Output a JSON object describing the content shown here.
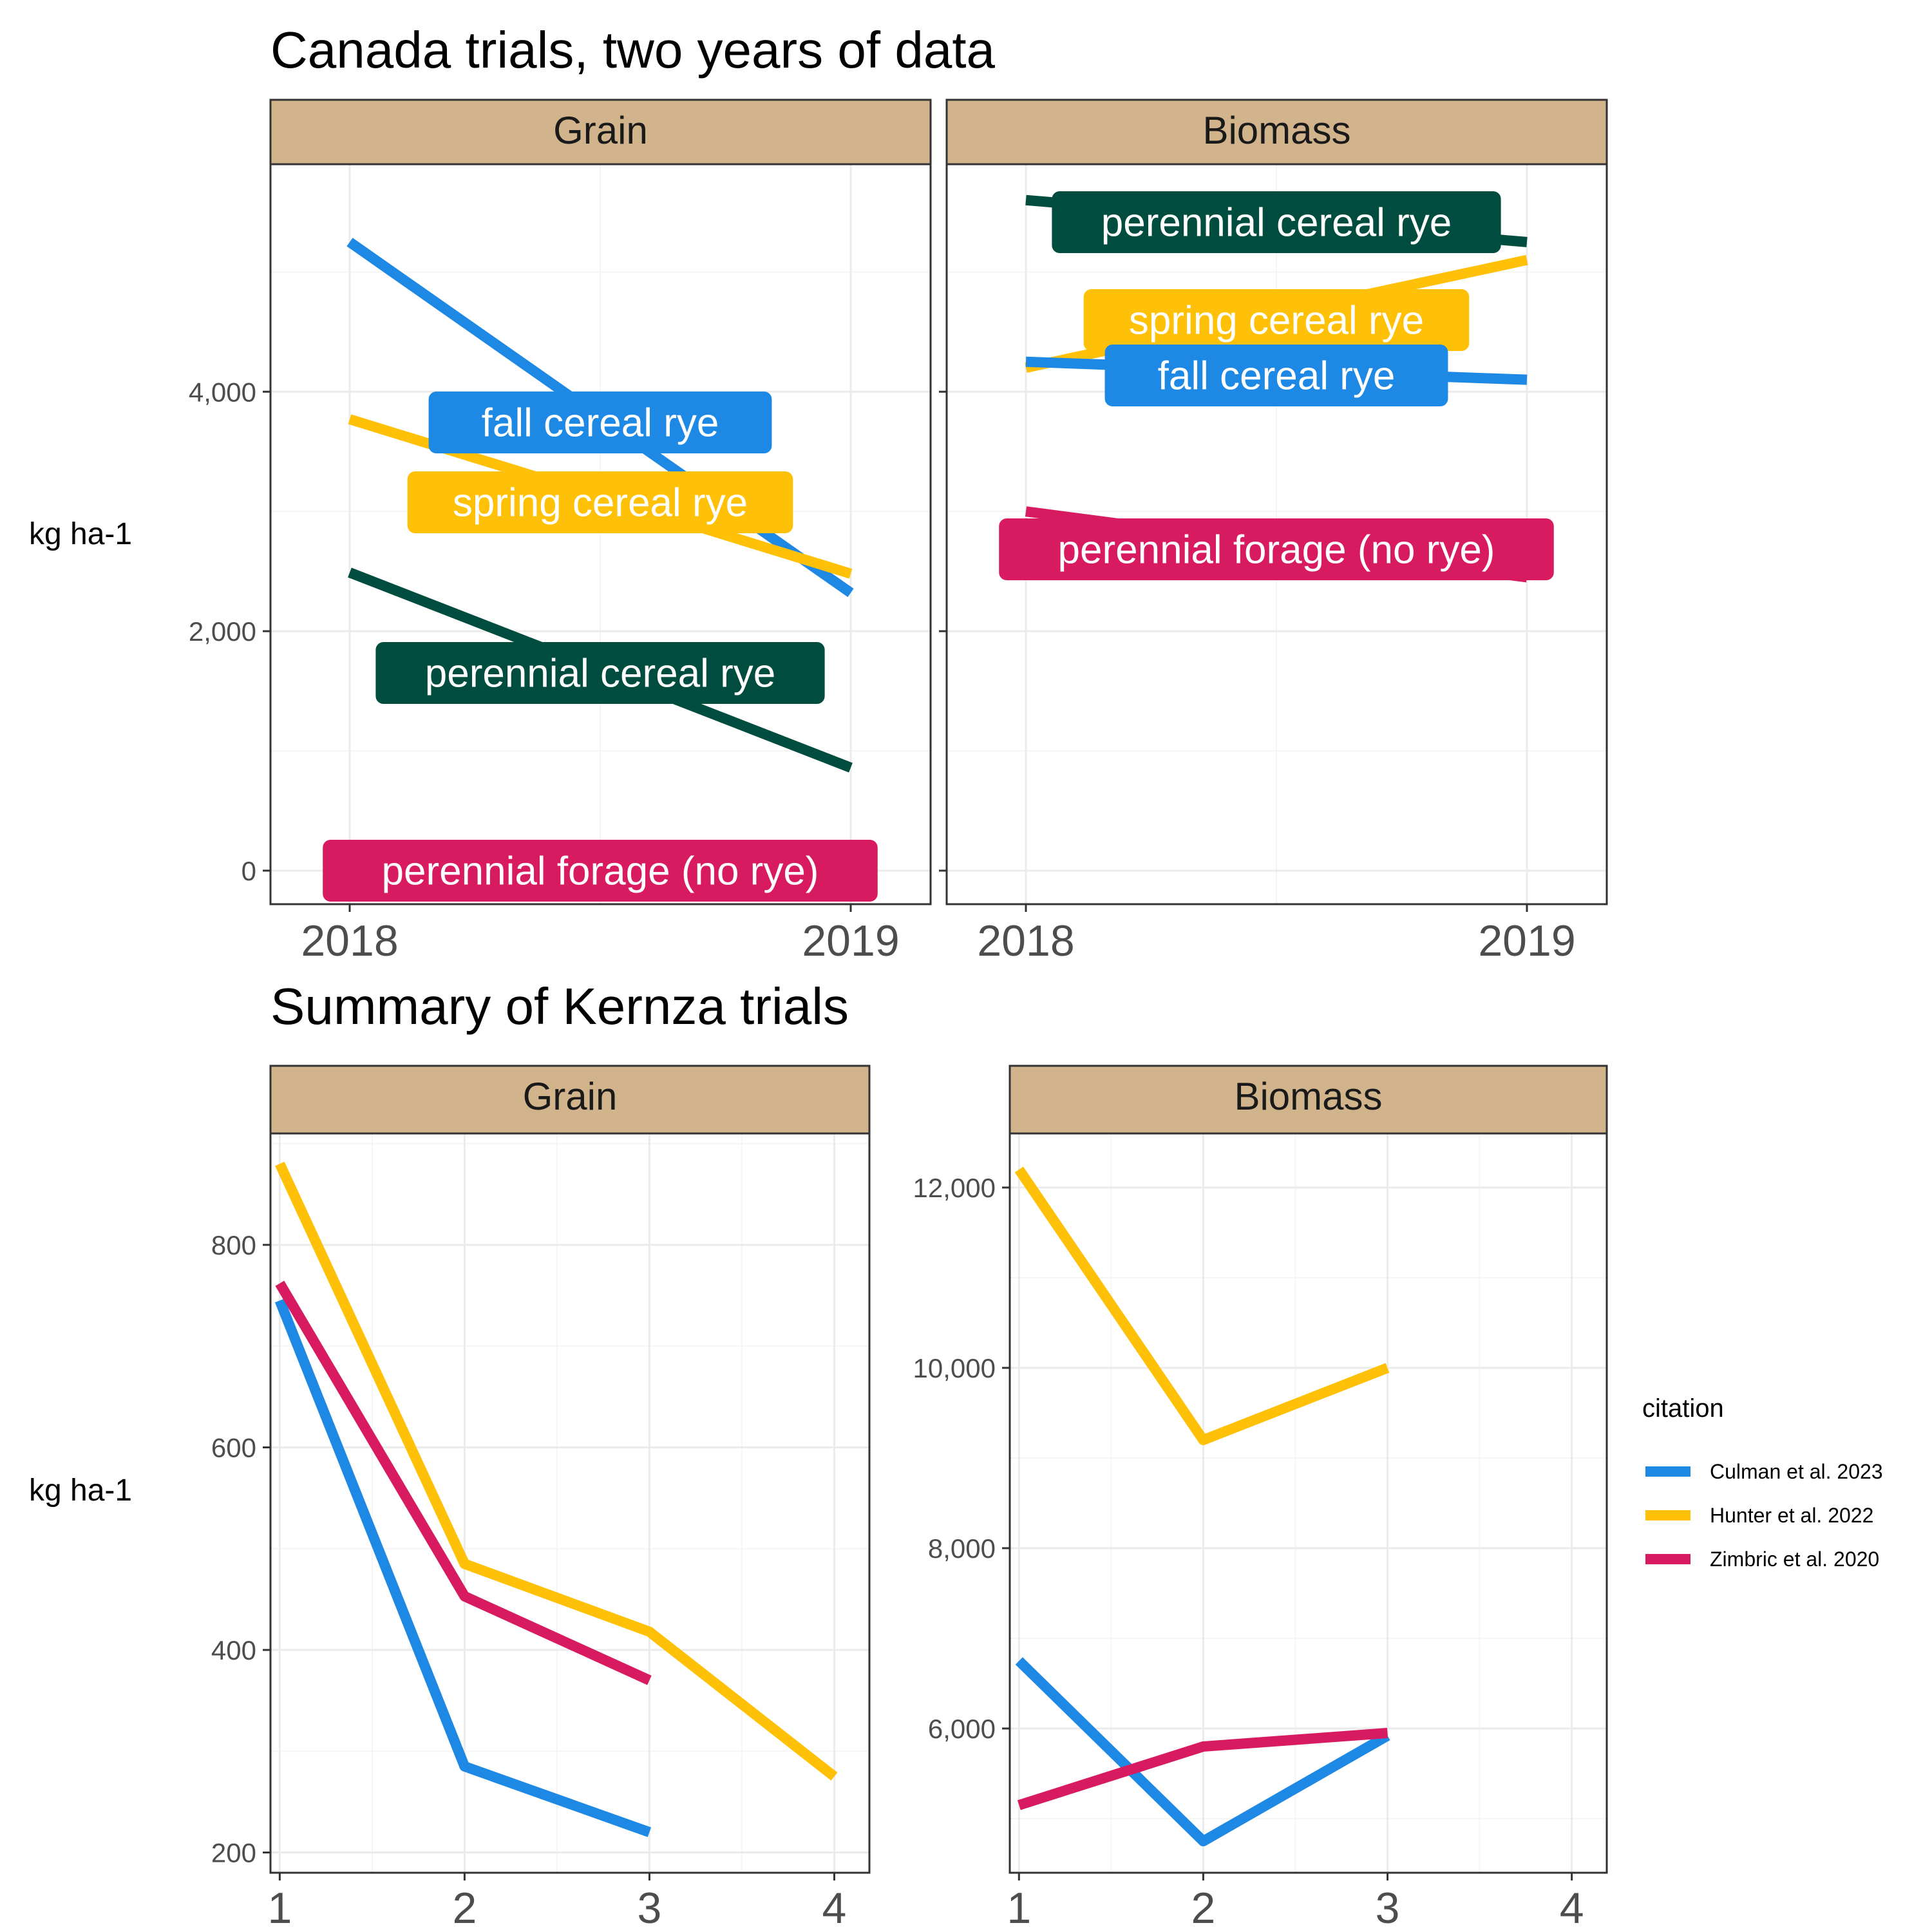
{
  "colors": {
    "strip_fill": "#D2B48C",
    "panel_border": "#333333",
    "grid_major": "#EBEBEB",
    "grid_minor": "#F5F5F5",
    "fall cereal rye": "#1E88E5",
    "spring cereal rye": "#FFC107",
    "perennial cereal rye": "#004D40",
    "perennial forage (no rye)": "#D81B60",
    "Culman et al. 2023": "#1E88E5",
    "Hunter et al. 2022": "#FFC107",
    "Zimbric et al. 2020": "#D81B60"
  },
  "figure": {
    "ylabel_top": "kg ha-1",
    "ylabel_bottom": "kg ha-1"
  },
  "chart_data": [
    {
      "type": "line",
      "title": "Canada trials, two years of data",
      "ylabel": "kg ha-1",
      "facets": [
        {
          "strip": "Grain",
          "x": [
            "2018",
            "2019"
          ],
          "ylim": [
            -280,
            5900
          ],
          "yticks": [
            0,
            2000,
            4000
          ],
          "ytick_labels": [
            "0",
            "2,000",
            "4,000"
          ],
          "series": [
            {
              "name": "fall cereal rye",
              "values": [
                5250,
                2320
              ]
            },
            {
              "name": "spring cereal rye",
              "values": [
                3770,
                2480
              ]
            },
            {
              "name": "perennial cereal rye",
              "values": [
                2490,
                860
              ]
            },
            {
              "name": "perennial forage (no rye)",
              "values": [
                0,
                0
              ]
            }
          ]
        },
        {
          "strip": "Biomass",
          "x": [
            "2018",
            "2019"
          ],
          "ylim": [
            -280,
            5900
          ],
          "yticks": [
            0,
            2000,
            4000
          ],
          "ytick_labels": [
            "",
            "",
            ""
          ],
          "series": [
            {
              "name": "perennial cereal rye",
              "values": [
                5600,
                5250
              ]
            },
            {
              "name": "spring cereal rye",
              "values": [
                4200,
                5100
              ]
            },
            {
              "name": "fall cereal rye",
              "values": [
                4250,
                4100
              ]
            },
            {
              "name": "perennial forage (no rye)",
              "values": [
                3000,
                2450
              ]
            }
          ]
        }
      ]
    },
    {
      "type": "line",
      "title": "Summary of Kernza trials",
      "ylabel": "kg ha-1",
      "legend": {
        "title": "citation",
        "position": "right",
        "entries": [
          "Culman et al. 2023",
          "Hunter et al. 2022",
          "Zimbric et al. 2020"
        ]
      },
      "facets": [
        {
          "strip": "Grain",
          "x_ticks": [
            "1",
            "2",
            "3",
            "4"
          ],
          "xlim": [
            0.99,
            4.15
          ],
          "ylim": [
            180,
            910
          ],
          "yticks": [
            200,
            400,
            600,
            800
          ],
          "ytick_labels": [
            "200",
            "400",
            "600",
            "800"
          ],
          "series": [
            {
              "name": "Culman et al. 2023",
              "x": [
                1,
                2,
                3
              ],
              "values": [
                745,
                285,
                220
              ]
            },
            {
              "name": "Hunter et al. 2022",
              "x": [
                1,
                2,
                3,
                4
              ],
              "values": [
                880,
                485,
                418,
                275
              ]
            },
            {
              "name": "Zimbric et al. 2020",
              "x": [
                1,
                2,
                3
              ],
              "values": [
                762,
                453,
                370
              ]
            }
          ]
        },
        {
          "strip": "Biomass",
          "x_ticks": [
            "1",
            "2",
            "3",
            "4"
          ],
          "xlim": [
            0.99,
            4.15
          ],
          "ylim": [
            4400,
            12600
          ],
          "yticks": [
            6000,
            8000,
            10000,
            12000
          ],
          "ytick_labels": [
            "6,000",
            "8,000",
            "10,000",
            "12,000"
          ],
          "series": [
            {
              "name": "Culman et al. 2023",
              "x": [
                1,
                2,
                3
              ],
              "values": [
                6750,
                4750,
                5920
              ]
            },
            {
              "name": "Hunter et al. 2022",
              "x": [
                1,
                2,
                3
              ],
              "values": [
                12200,
                9200,
                10000
              ]
            },
            {
              "name": "Zimbric et al. 2020",
              "x": [
                1,
                2,
                3
              ],
              "values": [
                5150,
                5800,
                5950
              ]
            }
          ]
        }
      ]
    }
  ]
}
